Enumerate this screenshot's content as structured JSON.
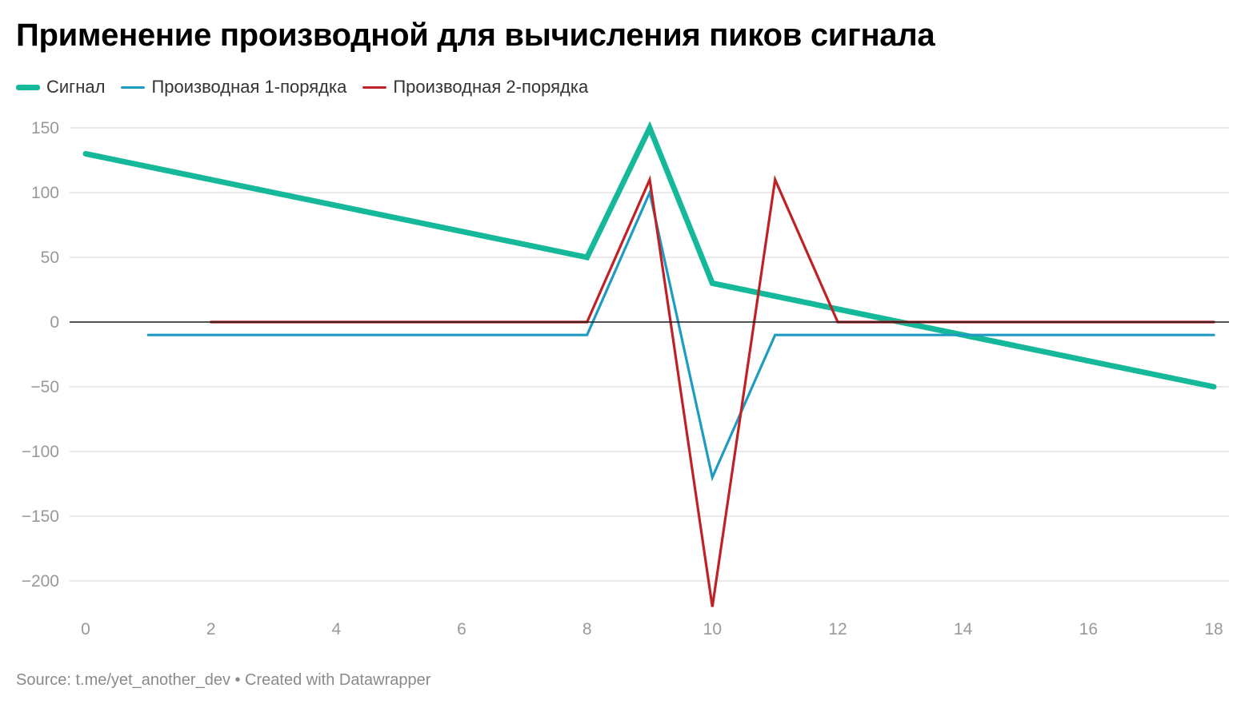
{
  "title": "Применение производной для вычисления пиков сигнала",
  "footer": "Source: t.me/yet_another_dev • Created with Datawrapper",
  "chart_data": {
    "type": "line",
    "title": "Применение производной для вычисления пиков сигнала",
    "xlabel": "",
    "ylabel": "",
    "xlim": [
      0,
      18
    ],
    "ylim": [
      -220,
      150
    ],
    "x_ticks": [
      "0",
      "2",
      "4",
      "6",
      "8",
      "10",
      "12",
      "14",
      "16",
      "18"
    ],
    "y_ticks": [
      "150",
      "100",
      "50",
      "0",
      "−50",
      "−100",
      "−150",
      "−200"
    ],
    "grid": true,
    "legend_position": "top-left",
    "series": [
      {
        "name": "Сигнал",
        "color": "#15b99a",
        "points": [
          [
            0,
            130
          ],
          [
            8,
            50
          ],
          [
            9,
            150
          ],
          [
            10,
            30
          ],
          [
            18,
            -50
          ]
        ]
      },
      {
        "name": "Производная 1-порядка",
        "color": "#1f9bc2",
        "points": [
          [
            1,
            -10
          ],
          [
            8,
            -10
          ],
          [
            9,
            100
          ],
          [
            10,
            -120
          ],
          [
            11,
            -10
          ],
          [
            18,
            -10
          ]
        ]
      },
      {
        "name": "Производная 2-порядка",
        "color": "#bf2126",
        "points": [
          [
            2,
            0
          ],
          [
            8,
            0
          ],
          [
            9,
            110
          ],
          [
            10,
            -220
          ],
          [
            11,
            110
          ],
          [
            12,
            0
          ],
          [
            18,
            0
          ]
        ]
      }
    ]
  }
}
